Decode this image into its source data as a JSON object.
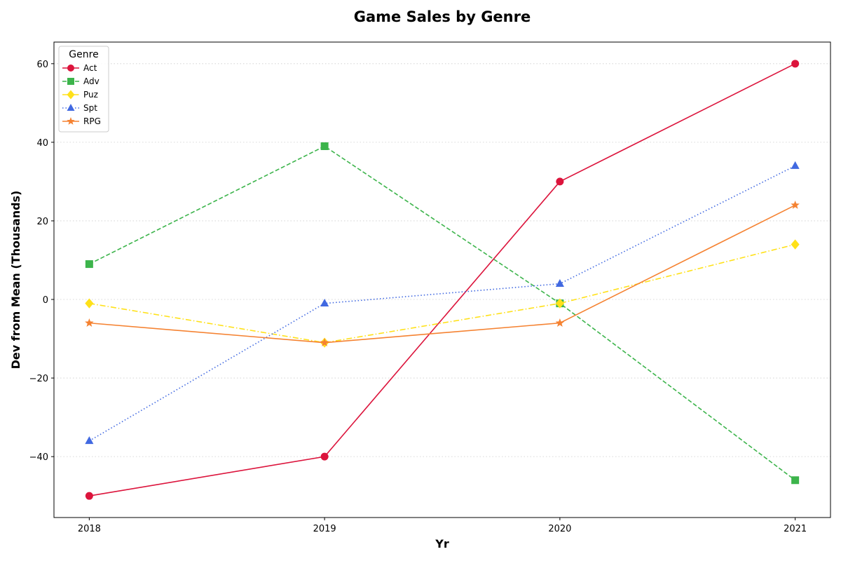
{
  "chart_data": {
    "type": "line",
    "title": "Game Sales by Genre",
    "xlabel": "Yr",
    "ylabel": "Dev from Mean (Thousands)",
    "x": [
      2018,
      2019,
      2020,
      2021
    ],
    "xticks": [
      "2018",
      "2019",
      "2020",
      "2021"
    ],
    "yticks": [
      "−40",
      "−20",
      "0",
      "20",
      "40",
      "60"
    ],
    "ytick_values": [
      -40,
      -20,
      0,
      20,
      40,
      60
    ],
    "xlim": [
      2017.85,
      2021.15
    ],
    "ylim": [
      -55.5,
      65.5
    ],
    "grid": "y-dotted",
    "legend": {
      "title": "Genre",
      "placement": "top-left"
    },
    "series": [
      {
        "name": "Act",
        "values": [
          -50,
          -40,
          30,
          60
        ],
        "color": "#dc143c",
        "marker": "circle",
        "dash": "solid"
      },
      {
        "name": "Adv",
        "values": [
          9,
          39,
          -1,
          -46
        ],
        "color": "#3cb44b",
        "marker": "square",
        "dash": "dashed"
      },
      {
        "name": "Puz",
        "values": [
          -1,
          -11,
          -1,
          14
        ],
        "color": "#ffe119",
        "marker": "diamond",
        "dash": "dashdot"
      },
      {
        "name": "Spt",
        "values": [
          -36,
          -1,
          4,
          34
        ],
        "color": "#4169e1",
        "marker": "triangle",
        "dash": "dotted"
      },
      {
        "name": "RPG",
        "values": [
          -6,
          -11,
          -6,
          24
        ],
        "color": "#f58231",
        "marker": "star",
        "dash": "solid"
      }
    ]
  }
}
